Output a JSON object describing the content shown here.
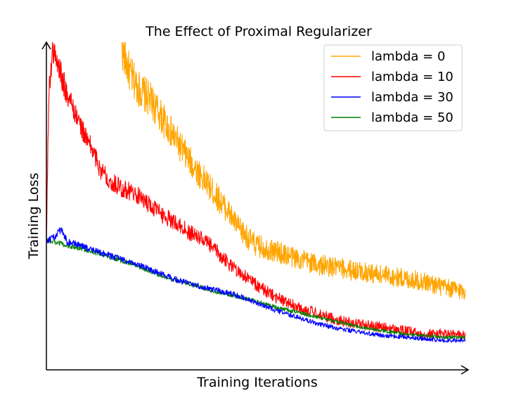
{
  "chart_data": {
    "type": "line",
    "title": "The Effect of Proximal Regularizer",
    "xlabel": "Training Iterations",
    "ylabel": "Training Loss",
    "x_ticks_shown": false,
    "y_ticks_shown": false,
    "grid": false,
    "legend_position": "top-right",
    "xlim": [
      0,
      100
    ],
    "ylim": [
      0,
      100
    ],
    "series": [
      {
        "name": "lambda = 0",
        "color": "#FFA500",
        "noise": 4.5,
        "x": [
          18,
          20,
          22,
          25,
          28,
          31,
          34,
          37,
          40,
          43,
          46,
          50,
          55,
          60,
          65,
          70,
          75,
          80,
          85,
          90,
          95,
          100
        ],
        "y": [
          98,
          90,
          86,
          82,
          76,
          70,
          64,
          59,
          54,
          49,
          43,
          38,
          36,
          34,
          32,
          31,
          30,
          29,
          28,
          27,
          25,
          24
        ]
      },
      {
        "name": "lambda = 10",
        "color": "#FF0000",
        "noise": 3.0,
        "x": [
          0,
          0.6,
          1.5,
          3,
          5,
          7,
          9,
          11,
          13,
          16,
          19,
          22,
          25,
          28,
          31,
          34,
          37,
          40,
          43,
          46,
          50,
          55,
          60,
          65,
          70,
          75,
          80,
          85,
          90,
          95,
          100
        ],
        "y": [
          40,
          85,
          98,
          92,
          84,
          78,
          72,
          67,
          61,
          57,
          55,
          53,
          50,
          47,
          45,
          42,
          40,
          37,
          33,
          30,
          26,
          22,
          19,
          17,
          15,
          14,
          13,
          12,
          11,
          11,
          10.5
        ]
      },
      {
        "name": "lambda = 30",
        "color": "#0000FF",
        "noise": 1.3,
        "x": [
          0,
          1,
          2,
          3.5,
          5,
          7,
          10,
          15,
          20,
          25,
          30,
          35,
          40,
          45,
          50,
          55,
          60,
          65,
          70,
          75,
          80,
          85,
          90,
          95,
          100
        ],
        "y": [
          39.5,
          40,
          40.5,
          43,
          39,
          38.5,
          37,
          35,
          33,
          30.5,
          28,
          26,
          24.5,
          23,
          20.5,
          18,
          16,
          14,
          12.5,
          11.5,
          10.5,
          10,
          9.5,
          9,
          9
        ]
      },
      {
        "name": "lambda = 50",
        "color": "#008000",
        "noise": 1.0,
        "x": [
          0,
          2,
          5,
          10,
          15,
          20,
          25,
          30,
          35,
          40,
          45,
          50,
          55,
          60,
          65,
          70,
          75,
          80,
          85,
          90,
          95,
          100
        ],
        "y": [
          39.5,
          39,
          38,
          36.5,
          34.5,
          32.5,
          30,
          27.5,
          26,
          24,
          22.5,
          21,
          19,
          17.5,
          16,
          14.5,
          13,
          12,
          11,
          10.5,
          10,
          9.8
        ]
      }
    ]
  }
}
